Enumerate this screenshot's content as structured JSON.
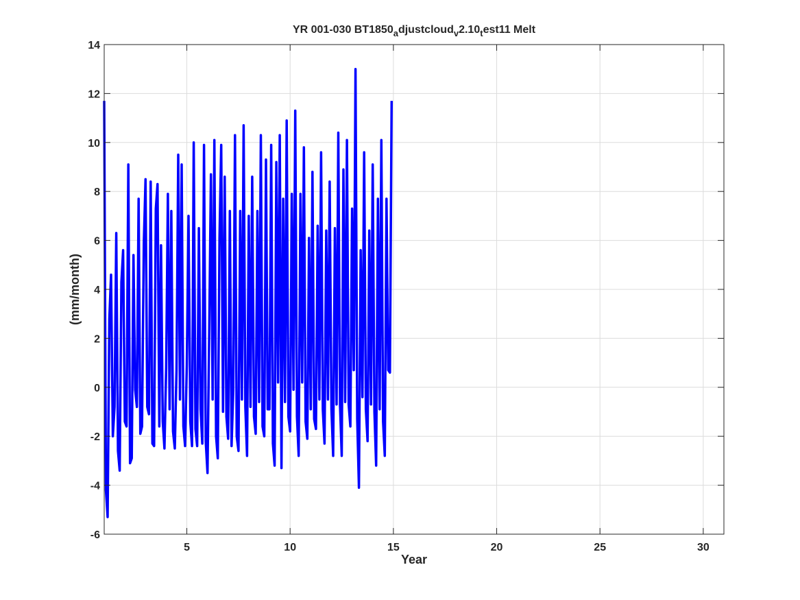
{
  "chart_data": {
    "type": "line",
    "title": {
      "segments": [
        {
          "text": "YR 001-030 BT1850",
          "sub": false
        },
        {
          "text": "a",
          "sub": true
        },
        {
          "text": "djustcloud",
          "sub": false
        },
        {
          "text": "v",
          "sub": true
        },
        {
          "text": "2.10",
          "sub": false
        },
        {
          "text": "t",
          "sub": true
        },
        {
          "text": "est11 Melt",
          "sub": false
        }
      ]
    },
    "xlabel": "Year",
    "ylabel": "(mm/month)",
    "xlim": [
      1,
      31
    ],
    "ylim": [
      -6,
      14
    ],
    "xticks": [
      5,
      10,
      15,
      20,
      25,
      30
    ],
    "yticks": [
      -6,
      -4,
      -2,
      0,
      2,
      4,
      6,
      8,
      10,
      12,
      14
    ],
    "grid": true,
    "series": [
      {
        "color": "#0000ff",
        "step": 0.08333,
        "x0": 1,
        "values": [
          11.7,
          -4.2,
          -5.3,
          2.8,
          4.6,
          -2.0,
          -0.8,
          6.3,
          -2.6,
          -3.4,
          4.3,
          5.6,
          -1.4,
          -1.6,
          9.1,
          -3.1,
          -2.9,
          5.4,
          -0.1,
          -0.8,
          7.7,
          -1.9,
          -1.6,
          5.9,
          8.5,
          -0.8,
          -1.1,
          8.4,
          -2.3,
          -2.4,
          7.3,
          8.3,
          -1.6,
          5.8,
          -1.4,
          -2.5,
          0.8,
          7.9,
          -0.9,
          7.2,
          -1.8,
          -2.5,
          0.7,
          9.5,
          -0.5,
          9.1,
          -1.6,
          -2.4,
          0.9,
          7.0,
          -1.4,
          -2.4,
          10.0,
          -1.7,
          -2.4,
          6.5,
          -0.9,
          -2.3,
          9.9,
          -2.2,
          -3.5,
          2.3,
          8.7,
          -0.5,
          10.1,
          -2.0,
          -2.9,
          6.1,
          9.9,
          -1.0,
          8.6,
          -1.2,
          -2.1,
          7.2,
          -2.4,
          -0.1,
          10.3,
          -2.0,
          -2.6,
          7.2,
          -0.5,
          10.7,
          -0.8,
          -2.8,
          7.0,
          -0.8,
          8.6,
          -1.2,
          -1.9,
          7.2,
          -0.6,
          10.3,
          -1.6,
          -2.0,
          9.3,
          -0.9,
          -0.9,
          9.9,
          -2.3,
          -3.2,
          9.2,
          0.2,
          10.3,
          -3.3,
          7.7,
          -0.6,
          10.9,
          -1.2,
          -1.8,
          7.9,
          -0.1,
          11.3,
          -1.2,
          -2.8,
          7.9,
          0.2,
          9.8,
          -1.4,
          -2.1,
          6.1,
          -0.9,
          8.8,
          -1.3,
          -1.7,
          6.6,
          -0.5,
          9.6,
          -0.9,
          -2.3,
          6.4,
          -0.5,
          8.4,
          -0.9,
          -2.8,
          6.5,
          -0.7,
          10.4,
          -0.7,
          -2.8,
          8.9,
          -0.6,
          10.1,
          -0.7,
          -1.6,
          7.3,
          0.7,
          13.0,
          -1.3,
          -4.1,
          5.6,
          -0.4,
          9.6,
          -0.9,
          -2.2,
          6.4,
          -0.7,
          9.1,
          -1.0,
          -3.2,
          7.7,
          -0.9,
          10.1,
          -1.4,
          -2.8,
          7.7,
          0.7,
          0.6,
          11.7
        ]
      }
    ]
  }
}
